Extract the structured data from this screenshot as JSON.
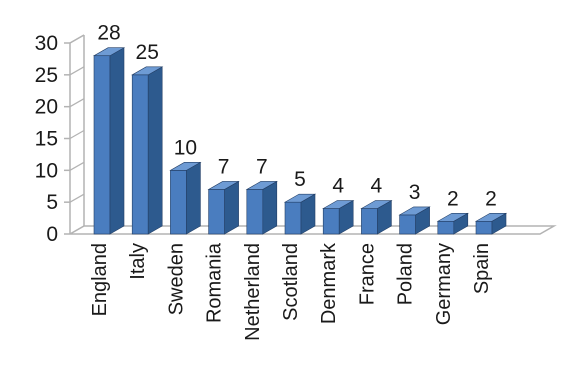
{
  "chart_data": {
    "type": "bar",
    "categories": [
      "England",
      "Italy",
      "Sweden",
      "Romania",
      "Netherland",
      "Scotland",
      "Denmark",
      "France",
      "Poland",
      "Germany",
      "Spain"
    ],
    "values": [
      28,
      25,
      10,
      7,
      7,
      5,
      4,
      4,
      3,
      2,
      2
    ],
    "data_labels": [
      "28",
      "25",
      "10",
      "7",
      "7",
      "5",
      "4",
      "4",
      "3",
      "2",
      "2"
    ],
    "y_ticks": [
      "0",
      "5",
      "10",
      "15",
      "20",
      "25",
      "30"
    ],
    "ylim": [
      0,
      30
    ],
    "title": "",
    "xlabel": "",
    "ylabel": "",
    "grid": false,
    "legend": "none",
    "style": "3d-column",
    "colors": {
      "bar_front": "#4a7dbf",
      "bar_side": "#2d5a8e",
      "bar_top": "#6e9bd4",
      "bar_edge": "#233f66",
      "axis": "#b3b3b3"
    }
  }
}
